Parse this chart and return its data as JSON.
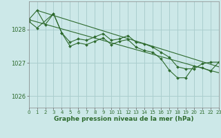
{
  "background_color": "#cce8e8",
  "grid_color": "#aacece",
  "line_color": "#2d6a2d",
  "marker_color": "#2d6a2d",
  "xlabel": "Graphe pression niveau de la mer (hPa)",
  "xlabel_fontsize": 6.5,
  "ylim": [
    1025.65,
    1028.85
  ],
  "xlim": [
    0,
    23
  ],
  "yticks": [
    1026,
    1027,
    1028
  ],
  "xticks": [
    0,
    1,
    2,
    3,
    4,
    5,
    6,
    7,
    8,
    9,
    10,
    11,
    12,
    13,
    14,
    15,
    16,
    17,
    18,
    19,
    20,
    21,
    22,
    23
  ],
  "series": [
    {
      "x": [
        0,
        1,
        2,
        3,
        4,
        5,
        6,
        7,
        8,
        9,
        10,
        11,
        12,
        13,
        14,
        15,
        16,
        17,
        18,
        19,
        20,
        21,
        22,
        23
      ],
      "y": [
        1028.3,
        1028.58,
        1028.15,
        1028.48,
        1027.9,
        1027.62,
        1027.72,
        1027.68,
        1027.78,
        1027.88,
        1027.68,
        1027.72,
        1027.82,
        1027.62,
        1027.57,
        1027.47,
        1027.32,
        1027.17,
        1026.88,
        1026.82,
        1026.82,
        1026.97,
        1027.02,
        1027.02
      ],
      "marker": true
    },
    {
      "x": [
        0,
        1,
        3,
        4,
        5,
        6,
        7,
        8,
        9,
        10,
        11,
        12,
        13,
        14,
        15,
        16,
        17,
        18,
        19,
        20,
        21,
        22,
        23
      ],
      "y": [
        1028.25,
        1028.05,
        1028.48,
        1027.9,
        1027.5,
        1027.6,
        1027.55,
        1027.65,
        1027.75,
        1027.55,
        1027.65,
        1027.7,
        1027.47,
        1027.37,
        1027.32,
        1027.12,
        1026.78,
        1026.55,
        1026.55,
        1026.9,
        1026.85,
        1026.75,
        1027.02
      ],
      "marker": true
    },
    {
      "x": [
        0,
        23
      ],
      "y": [
        1028.3,
        1026.7
      ],
      "marker": false
    },
    {
      "x": [
        1,
        23
      ],
      "y": [
        1028.58,
        1026.88
      ],
      "marker": false
    }
  ]
}
